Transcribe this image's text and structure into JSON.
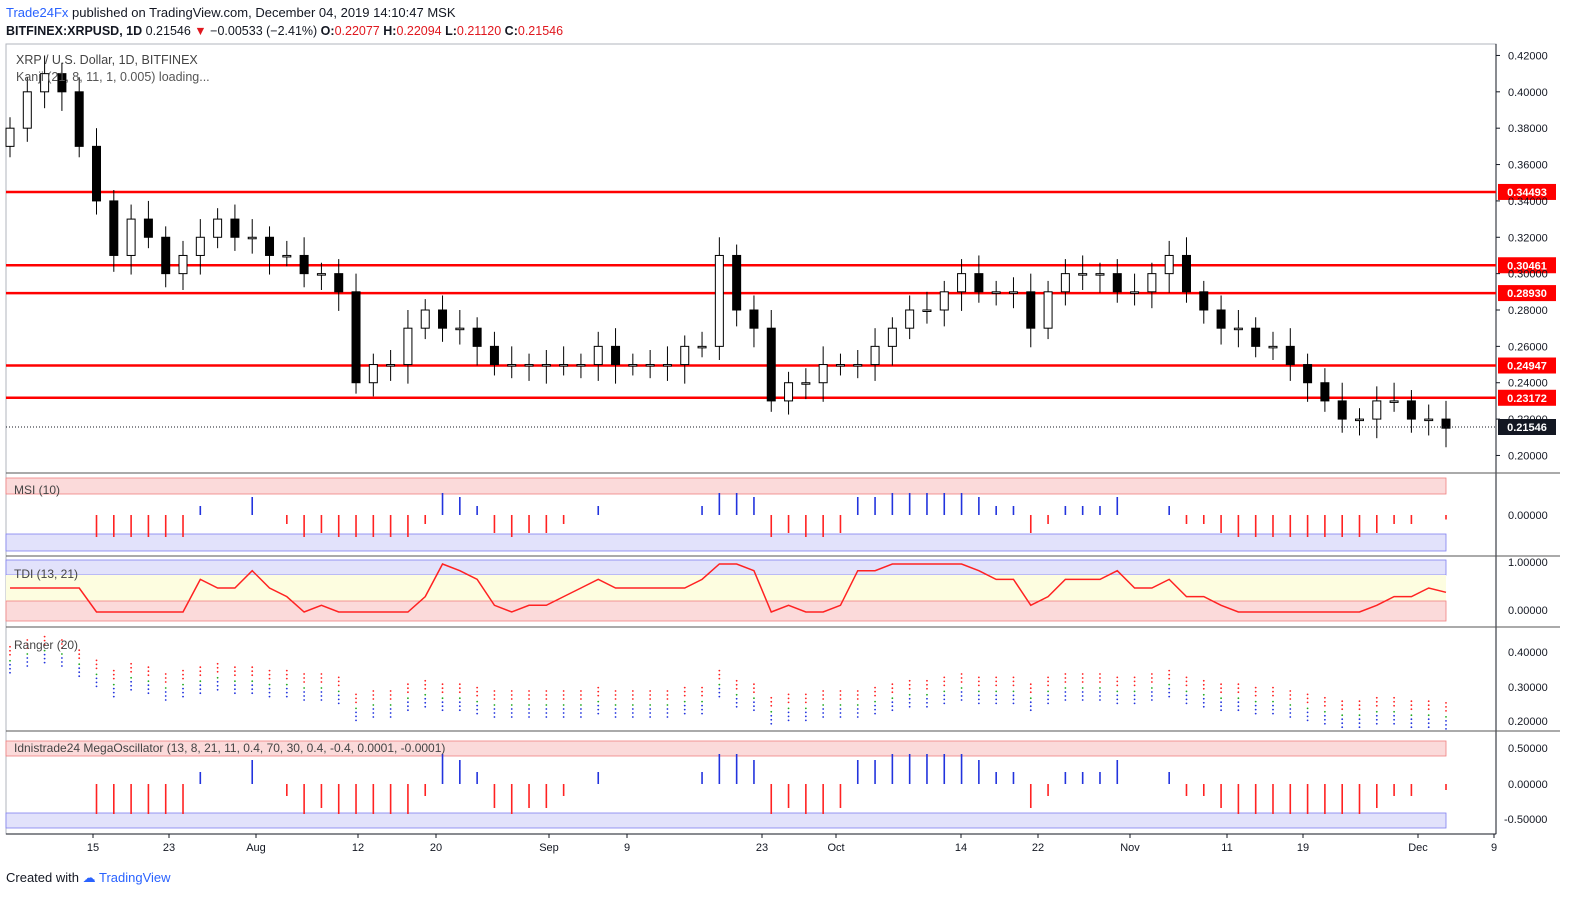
{
  "header": {
    "publisher": "Trade24Fx",
    "published_text": "published on TradingView.com, December 04, 2019 14:10:47 MSK",
    "symbol": "BITFINEX:XRPUSD, 1D",
    "last": "0.21546",
    "change": "−0.00533 (−2.41%)",
    "o_label": "O:",
    "o": "0.22077",
    "h_label": "H:",
    "h": "0.22094",
    "l_label": "L:",
    "l": "0.21120",
    "c_label": "C:",
    "c": "0.21546"
  },
  "legend": {
    "title": "XRP / U.S. Dollar, 1D, BITFINEX",
    "indicator": "Kanji (21, 8, 11, 1, 0.005) loading..."
  },
  "panes": {
    "msi": "MSI (10)",
    "tdi": "TDI (13, 21)",
    "ranger": "Ranger (20)",
    "mega": "Idnistrade24 MegaOscillator (13, 8, 21, 11, 0.4, 70, 30, 0.4, -0.4, 0.0001, -0.0001)"
  },
  "footer": {
    "created": "Created with",
    "brand": "TradingView"
  },
  "colors": {
    "up": "#ffffff",
    "down": "#000000",
    "level": "#ff0000",
    "blue": "#2233dd",
    "red": "#ff2222",
    "green": "#22aa22"
  },
  "chart_data": {
    "type": "candlestick",
    "price_axis_ticks": [
      "0.42000",
      "0.40000",
      "0.38000",
      "0.36000",
      "0.34000",
      "0.32000",
      "0.30000",
      "0.28000",
      "0.26000",
      "0.24000",
      "0.22000",
      "0.20000"
    ],
    "price_range": [
      0.192,
      0.423
    ],
    "x_ticks": [
      "15",
      "23",
      "Aug",
      "12",
      "20",
      "Sep",
      "9",
      "23",
      "Oct",
      "14",
      "22",
      "Nov",
      "11",
      "19",
      "Dec",
      "9"
    ],
    "levels": [
      "0.34493",
      "0.30461",
      "0.28930",
      "0.24947",
      "0.23172"
    ],
    "last_price_label": "0.21546",
    "candles_close": [
      0.38,
      0.4,
      0.41,
      0.4,
      0.37,
      0.34,
      0.31,
      0.33,
      0.32,
      0.3,
      0.31,
      0.32,
      0.33,
      0.32,
      0.32,
      0.31,
      0.31,
      0.3,
      0.3,
      0.29,
      0.24,
      0.25,
      0.25,
      0.27,
      0.28,
      0.27,
      0.27,
      0.26,
      0.25,
      0.25,
      0.25,
      0.25,
      0.25,
      0.25,
      0.26,
      0.25,
      0.25,
      0.25,
      0.25,
      0.26,
      0.26,
      0.31,
      0.28,
      0.27,
      0.23,
      0.24,
      0.24,
      0.25,
      0.25,
      0.25,
      0.26,
      0.27,
      0.28,
      0.28,
      0.29,
      0.3,
      0.29,
      0.29,
      0.29,
      0.27,
      0.29,
      0.3,
      0.3,
      0.3,
      0.29,
      0.29,
      0.3,
      0.31,
      0.29,
      0.28,
      0.27,
      0.27,
      0.26,
      0.26,
      0.25,
      0.24,
      0.23,
      0.22,
      0.22,
      0.23,
      0.23,
      0.22,
      0.22,
      0.215
    ],
    "msi_axis": [
      "0.00000"
    ],
    "tdi_axis": [
      "1.00000",
      "0.00000"
    ],
    "ranger_axis": [
      "0.40000",
      "0.30000",
      "0.20000"
    ],
    "mega_axis": [
      "0.50000",
      "0.00000",
      "-0.50000"
    ]
  }
}
